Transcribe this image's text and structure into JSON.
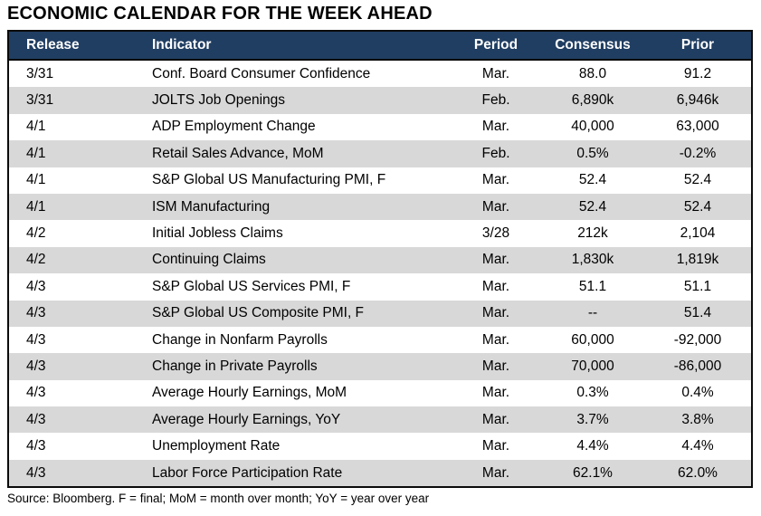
{
  "title": "ECONOMIC CALENDAR FOR THE WEEK AHEAD",
  "footer": "Source: Bloomberg. F = final; MoM = month over month; YoY = year over year",
  "colors": {
    "header_bg": "#203e62",
    "row_alt_bg": "#d8d8d8",
    "border": "#0b0b0b",
    "header_text": "#ffffff"
  },
  "table": {
    "columns": [
      "Release",
      "Indicator",
      "Period",
      "Consensus",
      "Prior"
    ],
    "rows": [
      [
        "3/31",
        "Conf. Board Consumer Confidence",
        "Mar.",
        "88.0",
        "91.2"
      ],
      [
        "3/31",
        "JOLTS Job Openings",
        "Feb.",
        "6,890k",
        "6,946k"
      ],
      [
        "4/1",
        "ADP Employment Change",
        "Mar.",
        "40,000",
        "63,000"
      ],
      [
        "4/1",
        "Retail Sales Advance, MoM",
        "Feb.",
        "0.5%",
        "-0.2%"
      ],
      [
        "4/1",
        "S&P Global US Manufacturing PMI, F",
        "Mar.",
        "52.4",
        "52.4"
      ],
      [
        "4/1",
        "ISM Manufacturing",
        "Mar.",
        "52.4",
        "52.4"
      ],
      [
        "4/2",
        "Initial Jobless Claims",
        "3/28",
        "212k",
        "2,104"
      ],
      [
        "4/2",
        "Continuing Claims",
        "Mar.",
        "1,830k",
        "1,819k"
      ],
      [
        "4/3",
        "S&P Global US Services PMI, F",
        "Mar.",
        "51.1",
        "51.1"
      ],
      [
        "4/3",
        "S&P Global US Composite PMI, F",
        "Mar.",
        "--",
        "51.4"
      ],
      [
        "4/3",
        "Change in Nonfarm Payrolls",
        "Mar.",
        "60,000",
        "-92,000"
      ],
      [
        "4/3",
        "Change in Private Payrolls",
        "Mar.",
        "70,000",
        "-86,000"
      ],
      [
        "4/3",
        "Average Hourly Earnings, MoM",
        "Mar.",
        "0.3%",
        "0.4%"
      ],
      [
        "4/3",
        "Average Hourly Earnings, YoY",
        "Mar.",
        "3.7%",
        "3.8%"
      ],
      [
        "4/3",
        "Unemployment Rate",
        "Mar.",
        "4.4%",
        "4.4%"
      ],
      [
        "4/3",
        "Labor Force Participation Rate",
        "Mar.",
        "62.1%",
        "62.0%"
      ]
    ]
  }
}
